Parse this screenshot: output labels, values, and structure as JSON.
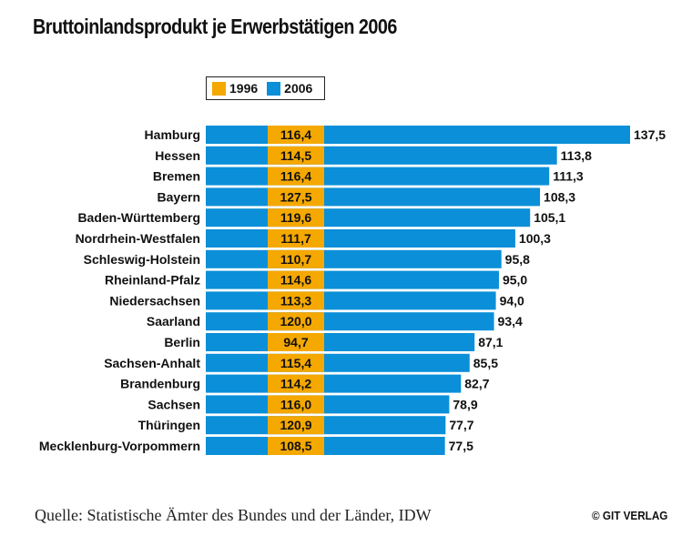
{
  "chart_data": {
    "type": "bar",
    "orientation": "horizontal",
    "title": "Bruttoinlandsprodukt je Erwerbstätigen 2006",
    "categories": [
      "Hamburg",
      "Hessen",
      "Bremen",
      "Bayern",
      "Baden-Württemberg",
      "Nordrhein-Westfalen",
      "Schleswig-Holstein",
      "Rheinland-Pfalz",
      "Niedersachsen",
      "Saarland",
      "Berlin",
      "Sachsen-Anhalt",
      "Brandenburg",
      "Sachsen",
      "Thüringen",
      "Mecklenburg-Vorpommern"
    ],
    "series": [
      {
        "name": "1996",
        "color": "#f5a800",
        "values": [
          116.4,
          114.5,
          116.4,
          127.5,
          119.6,
          111.7,
          110.7,
          114.6,
          113.3,
          120.0,
          94.7,
          115.4,
          114.2,
          116.0,
          120.9,
          108.5
        ],
        "labels": [
          "116,4",
          "114,5",
          "116,4",
          "127,5",
          "119,6",
          "111,7",
          "110,7",
          "114,6",
          "113,3",
          "120,0",
          "94,7",
          "115,4",
          "114,2",
          "116,0",
          "120,9",
          "108,5"
        ]
      },
      {
        "name": "2006",
        "color": "#0a8fd8",
        "values": [
          137.5,
          113.8,
          111.3,
          108.3,
          105.1,
          100.3,
          95.8,
          95.0,
          94.0,
          93.4,
          87.1,
          85.5,
          82.7,
          78.9,
          77.7,
          77.5
        ],
        "labels": [
          "137,5",
          "113,8",
          "111,3",
          "108,3",
          "105,1",
          "100,3",
          "95,8",
          "95,0",
          "94,0",
          "93,4",
          "87,1",
          "85,5",
          "82,7",
          "78,9",
          "77,7",
          "77,5"
        ]
      }
    ],
    "xlim": [
      0,
      137.5
    ],
    "legend": "top-left"
  },
  "legend": {
    "items": [
      {
        "label": "1996",
        "color": "#f5a800"
      },
      {
        "label": "2006",
        "color": "#0a8fd8"
      }
    ]
  },
  "footer": {
    "source": "Quelle: Statistische Ämter des Bundes und der Länder, IDW",
    "copyright": "© GIT VERLAG"
  }
}
